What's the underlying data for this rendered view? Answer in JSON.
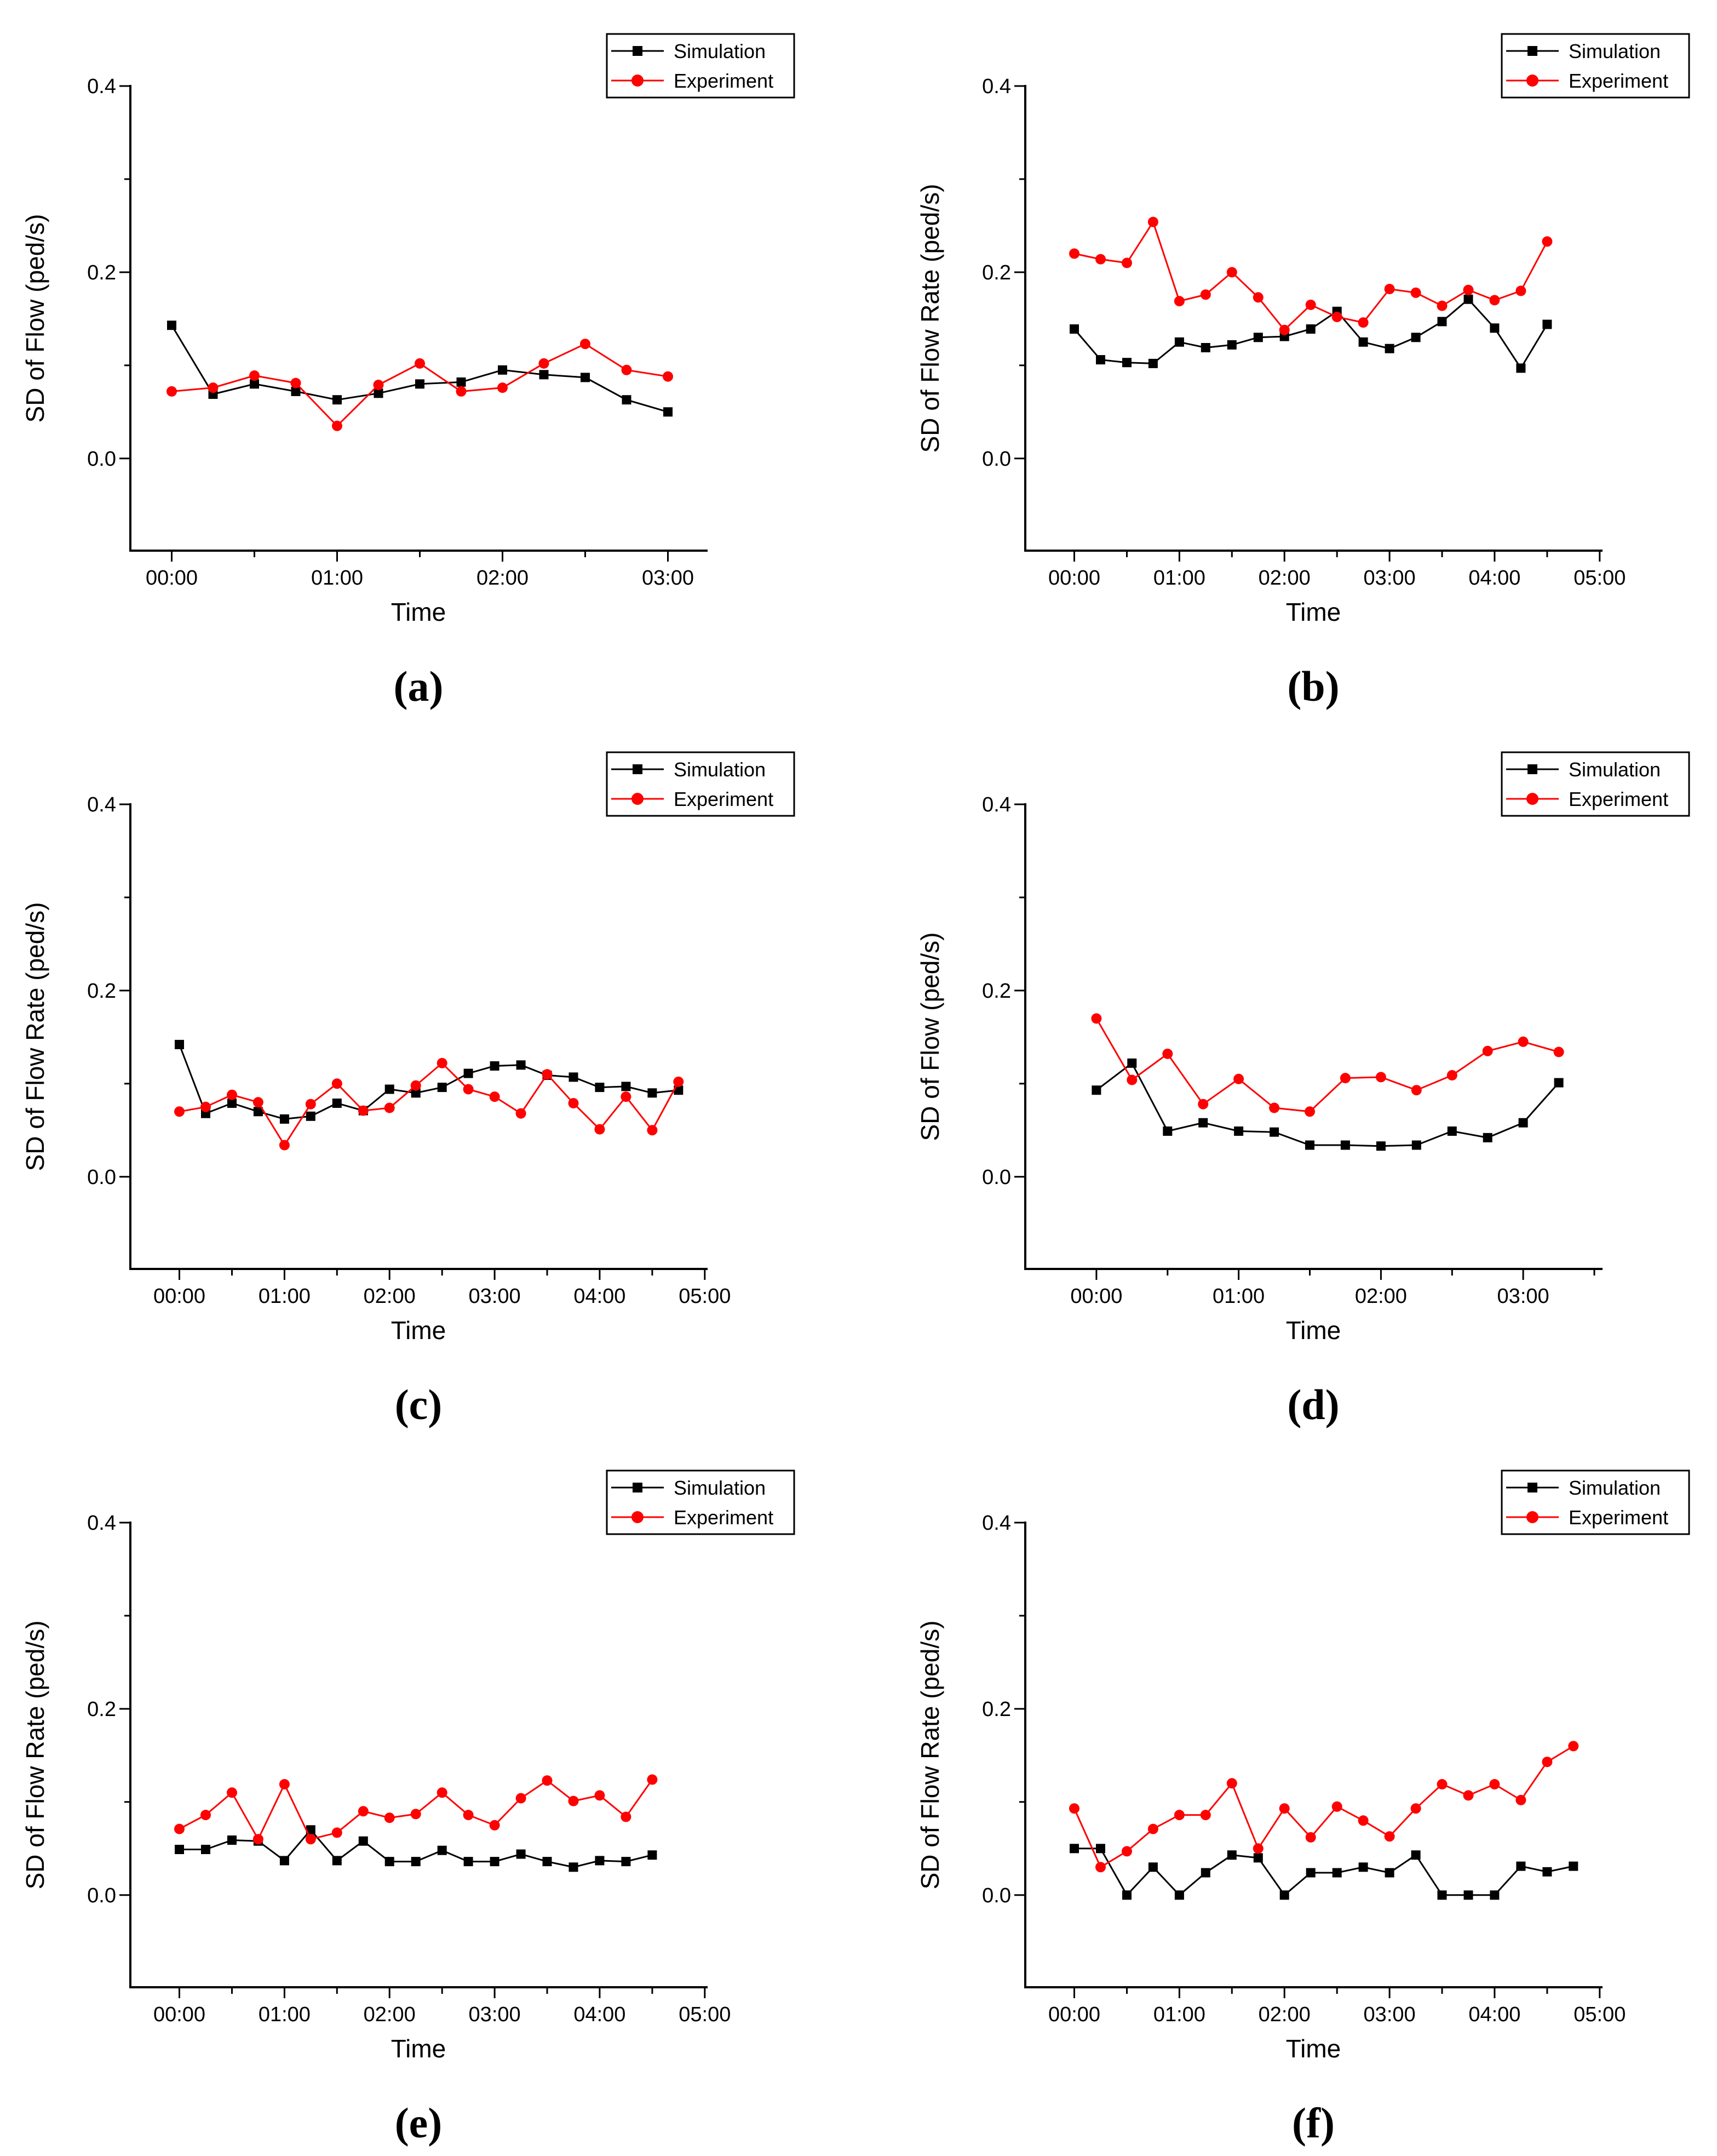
{
  "figure": {
    "background": "#FFFFFF",
    "text_color": "#000000",
    "simulation_color": "#000000",
    "experiment_color": "#FF0000",
    "legend_labels": [
      "Simulation",
      "Experiment"
    ]
  },
  "chart_data": [
    {
      "id": "a",
      "panel_label": "(a)",
      "type": "line",
      "xlabel": "Time",
      "ylabel": "SD of Flow (ped/s)",
      "xlim": [
        -15,
        194
      ],
      "ylim": [
        -0.099,
        0.4
      ],
      "x_ticks": [
        {
          "min": 0,
          "label": "00:00"
        },
        {
          "min": 60,
          "label": "01:00"
        },
        {
          "min": 120,
          "label": "02:00"
        },
        {
          "min": 180,
          "label": "03:00"
        }
      ],
      "x_minor_ticks": [
        30,
        90,
        150
      ],
      "y_ticks": [
        {
          "value": 0.0,
          "label": "0.0"
        },
        {
          "value": 0.2,
          "label": "0.2"
        },
        {
          "value": 0.4,
          "label": "0.4"
        }
      ],
      "y_minor_ticks": [
        0.1,
        0.3
      ],
      "x_minutes": [
        0,
        15,
        30,
        45,
        60,
        75,
        90,
        105,
        120,
        135,
        150,
        165,
        180
      ],
      "series": [
        {
          "name": "Simulation",
          "color": "#000000",
          "marker": "square",
          "values": [
            0.143,
            0.069,
            0.08,
            0.072,
            0.063,
            0.07,
            0.08,
            0.082,
            0.095,
            0.09,
            0.087,
            0.063,
            0.05
          ]
        },
        {
          "name": "Experiment",
          "color": "#FF0000",
          "marker": "circle",
          "values": [
            0.072,
            0.076,
            0.089,
            0.081,
            0.035,
            0.079,
            0.102,
            0.072,
            0.076,
            0.102,
            0.123,
            0.095,
            0.088
          ]
        }
      ]
    },
    {
      "id": "b",
      "panel_label": "(b)",
      "type": "line",
      "xlabel": "Time",
      "ylabel": "SD of Flow Rate (ped/s)",
      "xlim": [
        -28,
        301
      ],
      "ylim": [
        -0.099,
        0.4
      ],
      "x_ticks": [
        {
          "min": 0,
          "label": "00:00"
        },
        {
          "min": 60,
          "label": "01:00"
        },
        {
          "min": 120,
          "label": "02:00"
        },
        {
          "min": 180,
          "label": "03:00"
        },
        {
          "min": 240,
          "label": "04:00"
        },
        {
          "min": 300,
          "label": "05:00"
        }
      ],
      "x_minor_ticks": [
        30,
        90,
        150,
        210,
        270
      ],
      "y_ticks": [
        {
          "value": 0.0,
          "label": "0.0"
        },
        {
          "value": 0.2,
          "label": "0.2"
        },
        {
          "value": 0.4,
          "label": "0.4"
        }
      ],
      "y_minor_ticks": [
        0.1,
        0.3
      ],
      "x_minutes": [
        0,
        15,
        30,
        45,
        60,
        75,
        90,
        105,
        120,
        135,
        150,
        165,
        180,
        195,
        210,
        225,
        240,
        255,
        270
      ],
      "series": [
        {
          "name": "Simulation",
          "color": "#000000",
          "marker": "square",
          "values": [
            0.139,
            0.106,
            0.103,
            0.102,
            0.125,
            0.119,
            0.122,
            0.13,
            0.131,
            0.139,
            0.158,
            0.125,
            0.118,
            0.13,
            0.147,
            0.171,
            0.14,
            0.097,
            0.144
          ]
        },
        {
          "name": "Experiment",
          "color": "#FF0000",
          "marker": "circle",
          "values": [
            0.22,
            0.214,
            0.21,
            0.254,
            0.169,
            0.176,
            0.2,
            0.173,
            0.138,
            0.165,
            0.152,
            0.146,
            0.182,
            0.178,
            0.164,
            0.181,
            0.17,
            0.18,
            0.233
          ]
        }
      ]
    },
    {
      "id": "c",
      "panel_label": "(c)",
      "type": "line",
      "xlabel": "Time",
      "ylabel": "SD of Flow Rate (ped/s)",
      "xlim": [
        -28,
        301
      ],
      "ylim": [
        -0.099,
        0.4
      ],
      "x_ticks": [
        {
          "min": 0,
          "label": "00:00"
        },
        {
          "min": 60,
          "label": "01:00"
        },
        {
          "min": 120,
          "label": "02:00"
        },
        {
          "min": 180,
          "label": "03:00"
        },
        {
          "min": 240,
          "label": "04:00"
        },
        {
          "min": 300,
          "label": "05:00"
        }
      ],
      "x_minor_ticks": [
        30,
        90,
        150,
        210,
        270
      ],
      "y_ticks": [
        {
          "value": 0.0,
          "label": "0.0"
        },
        {
          "value": 0.2,
          "label": "0.2"
        },
        {
          "value": 0.4,
          "label": "0.4"
        }
      ],
      "y_minor_ticks": [
        0.1,
        0.3
      ],
      "x_minutes": [
        0,
        15,
        30,
        45,
        60,
        75,
        90,
        105,
        120,
        135,
        150,
        165,
        180,
        195,
        210,
        225,
        240,
        255,
        270,
        285
      ],
      "series": [
        {
          "name": "Simulation",
          "color": "#000000",
          "marker": "square",
          "values": [
            0.142,
            0.068,
            0.079,
            0.07,
            0.062,
            0.065,
            0.079,
            0.071,
            0.094,
            0.09,
            0.096,
            0.111,
            0.119,
            0.12,
            0.109,
            0.107,
            0.096,
            0.097,
            0.09,
            0.093
          ]
        },
        {
          "name": "Experiment",
          "color": "#FF0000",
          "marker": "circle",
          "values": [
            0.07,
            0.075,
            0.088,
            0.08,
            0.034,
            0.078,
            0.1,
            0.071,
            0.074,
            0.098,
            0.122,
            0.094,
            0.086,
            0.068,
            0.11,
            0.079,
            0.051,
            0.086,
            0.05,
            0.102
          ]
        }
      ]
    },
    {
      "id": "d",
      "panel_label": "(d)",
      "type": "line",
      "xlabel": "Time",
      "ylabel": "SD of Flow (ped/s)",
      "xlim": [
        -30,
        213
      ],
      "ylim": [
        -0.099,
        0.4
      ],
      "x_ticks": [
        {
          "min": 0,
          "label": "00:00"
        },
        {
          "min": 60,
          "label": "01:00"
        },
        {
          "min": 120,
          "label": "02:00"
        },
        {
          "min": 180,
          "label": "03:00"
        }
      ],
      "x_minor_ticks": [
        30,
        90,
        150,
        210
      ],
      "y_ticks": [
        {
          "value": 0.0,
          "label": "0.0"
        },
        {
          "value": 0.2,
          "label": "0.2"
        },
        {
          "value": 0.4,
          "label": "0.4"
        }
      ],
      "y_minor_ticks": [
        0.1,
        0.3
      ],
      "x_minutes": [
        0,
        15,
        30,
        45,
        60,
        75,
        90,
        105,
        120,
        135,
        150,
        165,
        180,
        195
      ],
      "series": [
        {
          "name": "Simulation",
          "color": "#000000",
          "marker": "square",
          "values": [
            0.093,
            0.122,
            0.049,
            0.058,
            0.049,
            0.048,
            0.034,
            0.034,
            0.033,
            0.034,
            0.049,
            0.042,
            0.058,
            0.101
          ]
        },
        {
          "name": "Experiment",
          "color": "#FF0000",
          "marker": "circle",
          "values": [
            0.17,
            0.104,
            0.132,
            0.078,
            0.105,
            0.074,
            0.07,
            0.106,
            0.107,
            0.093,
            0.109,
            0.135,
            0.145,
            0.134
          ]
        }
      ]
    },
    {
      "id": "e",
      "panel_label": "(e)",
      "type": "line",
      "xlabel": "Time",
      "ylabel": "SD of Flow Rate (ped/s)",
      "xlim": [
        -28,
        301
      ],
      "ylim": [
        -0.099,
        0.4
      ],
      "x_ticks": [
        {
          "min": 0,
          "label": "00:00"
        },
        {
          "min": 60,
          "label": "01:00"
        },
        {
          "min": 120,
          "label": "02:00"
        },
        {
          "min": 180,
          "label": "03:00"
        },
        {
          "min": 240,
          "label": "04:00"
        },
        {
          "min": 300,
          "label": "05:00"
        }
      ],
      "x_minor_ticks": [
        30,
        90,
        150,
        210,
        270
      ],
      "y_ticks": [
        {
          "value": 0.0,
          "label": "0.0"
        },
        {
          "value": 0.2,
          "label": "0.2"
        },
        {
          "value": 0.4,
          "label": "0.4"
        }
      ],
      "y_minor_ticks": [
        0.1,
        0.3
      ],
      "x_minutes": [
        0,
        15,
        30,
        45,
        60,
        75,
        90,
        105,
        120,
        135,
        150,
        165,
        180,
        195,
        210,
        225,
        240,
        255,
        270
      ],
      "series": [
        {
          "name": "Simulation",
          "color": "#000000",
          "marker": "square",
          "values": [
            0.049,
            0.049,
            0.059,
            0.058,
            0.037,
            0.07,
            0.037,
            0.058,
            0.036,
            0.036,
            0.048,
            0.036,
            0.036,
            0.044,
            0.036,
            0.03,
            0.037,
            0.036,
            0.043
          ]
        },
        {
          "name": "Experiment",
          "color": "#FF0000",
          "marker": "circle",
          "values": [
            0.071,
            0.086,
            0.11,
            0.06,
            0.119,
            0.06,
            0.067,
            0.09,
            0.083,
            0.087,
            0.11,
            0.086,
            0.075,
            0.104,
            0.123,
            0.101,
            0.107,
            0.084,
            0.124
          ]
        }
      ]
    },
    {
      "id": "f",
      "panel_label": "(f)",
      "type": "line",
      "xlabel": "Time",
      "ylabel": "SD of Flow Rate (ped/s)",
      "xlim": [
        -28,
        301
      ],
      "ylim": [
        -0.099,
        0.4
      ],
      "x_ticks": [
        {
          "min": 0,
          "label": "00:00"
        },
        {
          "min": 60,
          "label": "01:00"
        },
        {
          "min": 120,
          "label": "02:00"
        },
        {
          "min": 180,
          "label": "03:00"
        },
        {
          "min": 240,
          "label": "04:00"
        },
        {
          "min": 300,
          "label": "05:00"
        }
      ],
      "x_minor_ticks": [
        30,
        90,
        150,
        210,
        270
      ],
      "y_ticks": [
        {
          "value": 0.0,
          "label": "0.0"
        },
        {
          "value": 0.2,
          "label": "0.2"
        },
        {
          "value": 0.4,
          "label": "0.4"
        }
      ],
      "y_minor_ticks": [
        0.1,
        0.3
      ],
      "x_minutes": [
        0,
        15,
        30,
        45,
        60,
        75,
        90,
        105,
        120,
        135,
        150,
        165,
        180,
        195,
        210,
        225,
        240,
        255,
        270,
        285
      ],
      "series": [
        {
          "name": "Simulation",
          "color": "#000000",
          "marker": "square",
          "values": [
            0.05,
            0.05,
            0.0,
            0.03,
            0.0,
            0.024,
            0.043,
            0.04,
            0.0,
            0.024,
            0.024,
            0.03,
            0.024,
            0.043,
            0.0,
            0.0,
            0.0,
            0.031,
            0.025,
            0.031
          ]
        },
        {
          "name": "Experiment",
          "color": "#FF0000",
          "marker": "circle",
          "values": [
            0.093,
            0.03,
            0.047,
            0.071,
            0.086,
            0.086,
            0.12,
            0.05,
            0.093,
            0.062,
            0.095,
            0.08,
            0.063,
            0.093,
            0.119,
            0.107,
            0.119,
            0.102,
            0.143,
            0.16
          ]
        }
      ]
    }
  ]
}
